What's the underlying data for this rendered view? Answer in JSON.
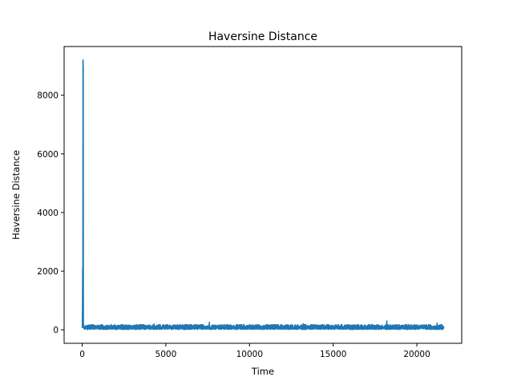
{
  "chart_data": {
    "type": "line",
    "title": "Haversine Distance",
    "xlabel": "Time",
    "ylabel": "Haversine Distance",
    "xlim": [
      -1080,
      22680
    ],
    "ylim": [
      -460,
      9660
    ],
    "xticks": [
      0,
      5000,
      10000,
      15000,
      20000
    ],
    "xtick_labels": [
      "0",
      "5000",
      "10000",
      "15000",
      "20000"
    ],
    "yticks": [
      0,
      2000,
      4000,
      6000,
      8000
    ],
    "ytick_labels": [
      "0",
      "2000",
      "4000",
      "6000",
      "8000"
    ],
    "grid": false,
    "series": [
      {
        "color": "#1f77b4",
        "x": [
          0,
          10,
          20,
          30,
          40,
          50,
          60,
          70,
          80,
          90,
          100,
          110,
          120,
          130,
          150,
          180,
          220,
          260
        ],
        "y": [
          60,
          150,
          900,
          2100,
          300,
          9200,
          8900,
          250,
          120,
          60,
          150,
          40,
          110,
          30,
          90,
          20,
          140,
          50
        ],
        "noise": {
          "x_start": 260,
          "x_end": 21600,
          "baseline": 70,
          "amplitude": 110,
          "spikes": [
            {
              "x": 4300,
              "y": 200
            },
            {
              "x": 7600,
              "y": 260
            },
            {
              "x": 13200,
              "y": 210
            },
            {
              "x": 18200,
              "y": 300
            },
            {
              "x": 21200,
              "y": 230
            }
          ]
        }
      }
    ]
  }
}
